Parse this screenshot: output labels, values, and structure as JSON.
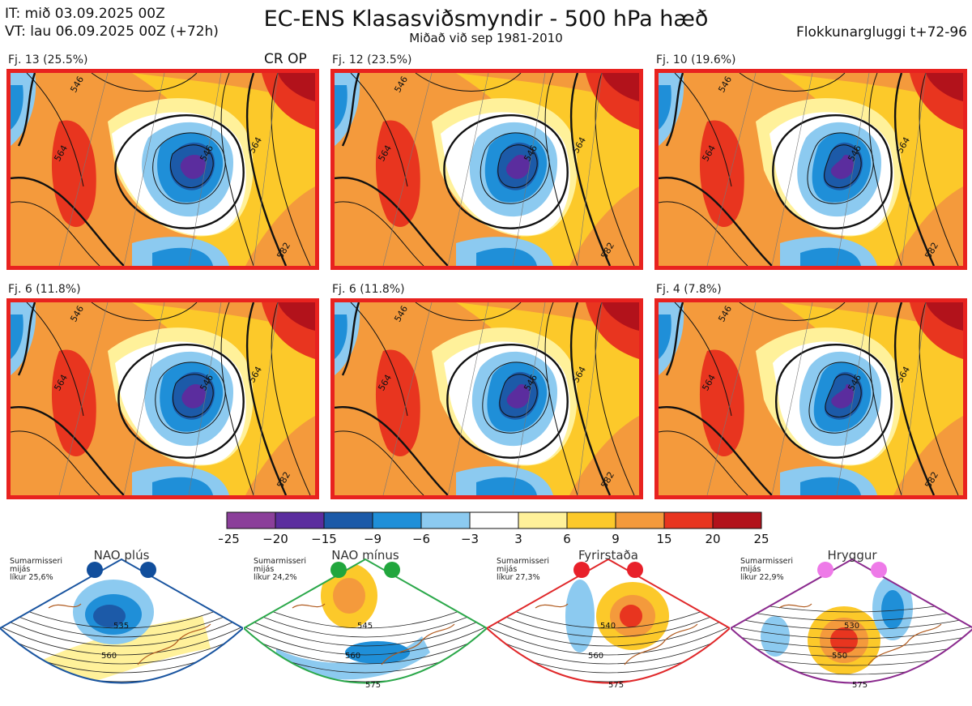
{
  "header": {
    "it_line": "IT: mið 03.09.2025 00Z",
    "vt_line": "VT: lau 06.09.2025 00Z  (+72h)",
    "title": "EC-ENS Klasasviðsmyndir - 500 hPa hæð",
    "subtitle": "Miðað við sep 1981-2010",
    "window": "Flokkunargluggi t+72-96"
  },
  "chart_data": {
    "type": "heatmap",
    "title": "EC-ENS Klasasviðsmyndir - 500 hPa hæð",
    "subtitle": "Miðað við sep 1981-2010",
    "panels": [
      {
        "label": "Fj. 13 (25.5%)",
        "members": 13,
        "percent": 25.5,
        "tag": "CR OP",
        "contours": [
          "546",
          "546",
          "564",
          "564",
          "582"
        ]
      },
      {
        "label": "Fj. 12 (23.5%)",
        "members": 12,
        "percent": 23.5,
        "tag": "",
        "contours": [
          "546",
          "546",
          "564",
          "564",
          "582"
        ]
      },
      {
        "label": "Fj. 10 (19.6%)",
        "members": 10,
        "percent": 19.6,
        "tag": "",
        "contours": [
          "546",
          "546",
          "564",
          "564",
          "582"
        ]
      },
      {
        "label": "Fj. 6 (11.8%)",
        "members": 6,
        "percent": 11.8,
        "tag": "",
        "contours": [
          "546",
          "546",
          "564",
          "564",
          "582"
        ]
      },
      {
        "label": "Fj. 6 (11.8%)",
        "members": 6,
        "percent": 11.8,
        "tag": "",
        "contours": [
          "546",
          "546",
          "564",
          "564",
          "582"
        ]
      },
      {
        "label": "Fj. 4 (7.8%)",
        "members": 4,
        "percent": 7.8,
        "tag": "",
        "contours": [
          "546",
          "546",
          "564",
          "564",
          "582"
        ]
      }
    ],
    "colorbar": {
      "ticks": [
        "−25",
        "−20",
        "−15",
        "−9",
        "−6",
        "−3",
        "3",
        "6",
        "9",
        "15",
        "20",
        "25"
      ],
      "colors": [
        "#8b3f9a",
        "#5b2d9e",
        "#1c5aa8",
        "#1f8fd8",
        "#8ccaf0",
        "#ffffff",
        "#fff19a",
        "#fcc92a",
        "#f49a3c",
        "#e8351f",
        "#b2121b"
      ]
    },
    "regimes": [
      {
        "title": "NAO plús",
        "note": [
          "Sumarmisseri",
          "mijás",
          "líkur 25,6%"
        ],
        "color": "#1a55a0",
        "dot": "#114e9c",
        "contours": [
          "535",
          "560"
        ]
      },
      {
        "title": "NAO mínus",
        "note": [
          "Sumarmisseri",
          "mijás",
          "líkur 24,2%"
        ],
        "color": "#2ba84a",
        "dot": "#21a63d",
        "contours": [
          "545",
          "560",
          "575"
        ]
      },
      {
        "title": "Fyrirstaða",
        "note": [
          "Sumarmisseri",
          "mijás",
          "líkur 27,3%"
        ],
        "color": "#e0282a",
        "dot": "#e8202a",
        "contours": [
          "540",
          "560",
          "575"
        ]
      },
      {
        "title": "Hryggur",
        "note": [
          "Sumarmisseri",
          "mijás",
          "líkur 22,9%"
        ],
        "color": "#8b2a8e",
        "dot": "#ee7ae8",
        "contours": [
          "530",
          "550",
          "575"
        ]
      }
    ]
  }
}
